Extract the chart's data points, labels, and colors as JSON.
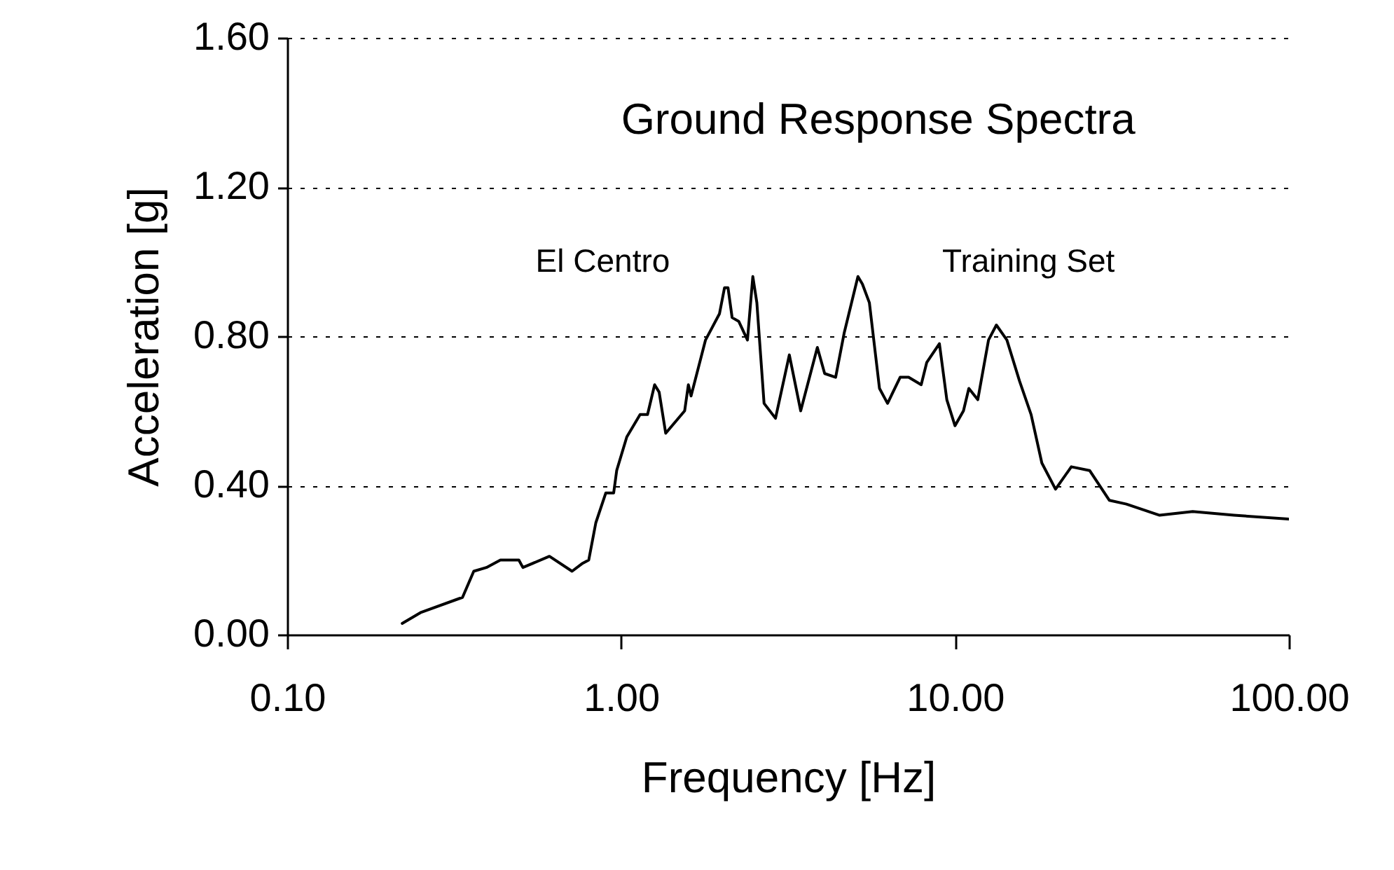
{
  "chart_data": {
    "type": "line",
    "title": "Ground Response Spectra",
    "xlabel": "Frequency [Hz]",
    "ylabel": "Acceleration [g]",
    "annotations": [
      "El Centro",
      "Training Set"
    ],
    "log": "x",
    "xlim": [
      0.1,
      100
    ],
    "ylim": [
      0,
      1.6
    ],
    "xticks": [
      {
        "value": 0.1,
        "label": "0.10"
      },
      {
        "value": 1,
        "label": "1.00"
      },
      {
        "value": 10,
        "label": "10.00"
      },
      {
        "value": 100,
        "label": "100.00"
      }
    ],
    "yticks": [
      {
        "value": 0,
        "label": "0.00"
      },
      {
        "value": 0.4,
        "label": "0.40"
      },
      {
        "value": 0.8,
        "label": "0.80"
      },
      {
        "value": 1.2,
        "label": "1.20"
      },
      {
        "value": 1.6,
        "label": "1.60"
      }
    ],
    "grid": "y",
    "marker": "none",
    "line_style": "solid",
    "series": [
      {
        "color": "#000000",
        "x": [
          0.221,
          0.252,
          0.335,
          0.362,
          0.395,
          0.435,
          0.494,
          0.508,
          0.61,
          0.713,
          0.763,
          0.8,
          0.84,
          0.9,
          0.95,
          0.97,
          1.04,
          1.14,
          1.2,
          1.26,
          1.3,
          1.36,
          1.55,
          1.59,
          1.62,
          1.79,
          1.97,
          2.04,
          2.09,
          2.15,
          2.25,
          2.39,
          2.48,
          2.55,
          2.68,
          2.9,
          3.19,
          3.45,
          3.87,
          4.07,
          4.39,
          4.66,
          5.12,
          5.28,
          5.54,
          5.94,
          6.28,
          6.85,
          7.26,
          7.92,
          8.23,
          8.98,
          9.45,
          10.0,
          10.6,
          11.0,
          11.7,
          12.6,
          13.3,
          14.3,
          15.6,
          16.9,
          18.2,
          20.0,
          22.3,
          25.3,
          29.0,
          32.6,
          41.0,
          51.5,
          68.5,
          100
        ],
        "values": [
          0.03,
          0.06,
          0.1,
          0.17,
          0.18,
          0.2,
          0.2,
          0.18,
          0.21,
          0.17,
          0.19,
          0.2,
          0.3,
          0.38,
          0.38,
          0.44,
          0.53,
          0.59,
          0.59,
          0.67,
          0.65,
          0.54,
          0.6,
          0.67,
          0.64,
          0.79,
          0.86,
          0.93,
          0.93,
          0.85,
          0.84,
          0.79,
          0.96,
          0.89,
          0.62,
          0.58,
          0.75,
          0.6,
          0.77,
          0.7,
          0.69,
          0.81,
          0.96,
          0.94,
          0.89,
          0.66,
          0.62,
          0.69,
          0.69,
          0.67,
          0.73,
          0.78,
          0.63,
          0.56,
          0.6,
          0.66,
          0.63,
          0.79,
          0.83,
          0.79,
          0.68,
          0.59,
          0.46,
          0.39,
          0.45,
          0.44,
          0.36,
          0.35,
          0.32,
          0.33,
          0.32,
          0.31
        ]
      }
    ]
  }
}
